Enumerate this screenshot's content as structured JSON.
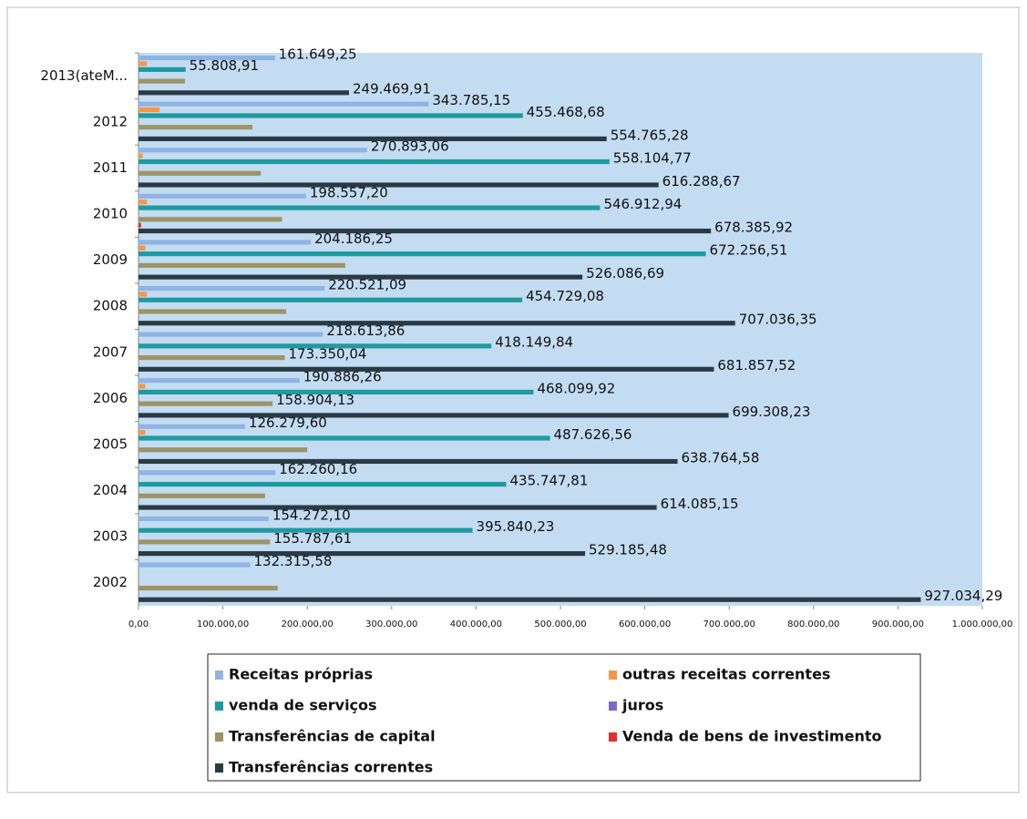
{
  "chart_data": {
    "type": "hbar",
    "categories": [
      "2002",
      "2003",
      "2004",
      "2005",
      "2006",
      "2007",
      "2008",
      "2009",
      "2010",
      "2011",
      "2012",
      "2013(ateM..."
    ],
    "xlim": [
      0,
      1000000
    ],
    "xticks": [
      {
        "value": 0,
        "label": "0,00"
      },
      {
        "value": 100000,
        "label": "100.000,00"
      },
      {
        "value": 200000,
        "label": "200.000,00"
      },
      {
        "value": 300000,
        "label": "300.000,00"
      },
      {
        "value": 400000,
        "label": "400.000,00"
      },
      {
        "value": 500000,
        "label": "500.000,00"
      },
      {
        "value": 600000,
        "label": "600.000,00"
      },
      {
        "value": 700000,
        "label": "700.000,00"
      },
      {
        "value": 800000,
        "label": "800.000,00"
      },
      {
        "value": 900000,
        "label": "900.000,00"
      },
      {
        "value": 1000000,
        "label": "1.000.000,00"
      }
    ],
    "legend": "bottom",
    "series": [
      {
        "name": "Receitas próprias",
        "color": "#8fb4e3",
        "values": [
          132315.58,
          154272.1,
          162260.16,
          126279.6,
          190886.26,
          218613.86,
          220521.09,
          204186.25,
          198557.2,
          270893.06,
          343785.15,
          161649.25
        ],
        "value_labels": [
          "132.315,58",
          "154.272,10",
          "162.260,16",
          "126.279,60",
          "190.886,26",
          "218.613,86",
          "220.521,09",
          "204.186,25",
          "198.557,20",
          "270.893,06",
          "343.785,15",
          "161.649,25"
        ]
      },
      {
        "name": "outras receitas correntes",
        "color": "#f79646",
        "values": [
          null,
          null,
          null,
          8000,
          8000,
          null,
          10000,
          8000,
          10000,
          5000,
          25000,
          10000
        ]
      },
      {
        "name": "venda de serviços",
        "color": "#1f9aa0",
        "values": [
          null,
          395840.23,
          435747.81,
          487626.56,
          468099.92,
          418149.84,
          454729.08,
          672256.51,
          546912.94,
          558104.77,
          455468.68,
          55808.91
        ],
        "value_labels": [
          null,
          "395.840,23",
          "435.747,81",
          "487.626,56",
          "468.099,92",
          "418.149,84",
          "454.729,08",
          "672.256,51",
          "546.912,94",
          "558.104,77",
          "455.468,68",
          "55.808,91"
        ]
      },
      {
        "name": "juros",
        "color": "#7b68c8",
        "values": [
          null,
          null,
          null,
          null,
          null,
          null,
          null,
          null,
          null,
          null,
          null,
          null
        ]
      },
      {
        "name": "Transferências de capital",
        "color": "#9c9467",
        "values": [
          165000,
          155787.61,
          150000,
          200000,
          158904.13,
          173350.04,
          175000,
          245000,
          170000,
          145000,
          135000,
          55000
        ],
        "value_labels": [
          null,
          "155.787,61",
          null,
          null,
          "158.904,13",
          "173.350,04",
          null,
          null,
          null,
          null,
          null,
          null
        ]
      },
      {
        "name": "Venda de bens de investimento",
        "color": "#e03030",
        "values": [
          null,
          null,
          null,
          null,
          null,
          null,
          null,
          null,
          3000,
          null,
          null,
          null
        ]
      },
      {
        "name": "Transferências correntes",
        "color": "#2a3a44",
        "values": [
          927034.29,
          529185.48,
          614085.15,
          638764.58,
          699308.23,
          681857.52,
          707036.35,
          526086.69,
          678385.92,
          616288.67,
          554765.28,
          249469.91
        ],
        "value_labels": [
          "927.034,29",
          "529.185,48",
          "614.085,15",
          "638.764,58",
          "699.308,23",
          "681.857,52",
          "707.036,35",
          "526.086,69",
          "678.385,92",
          "616.288,67",
          "554.765,28",
          "249.469,91"
        ]
      }
    ]
  }
}
